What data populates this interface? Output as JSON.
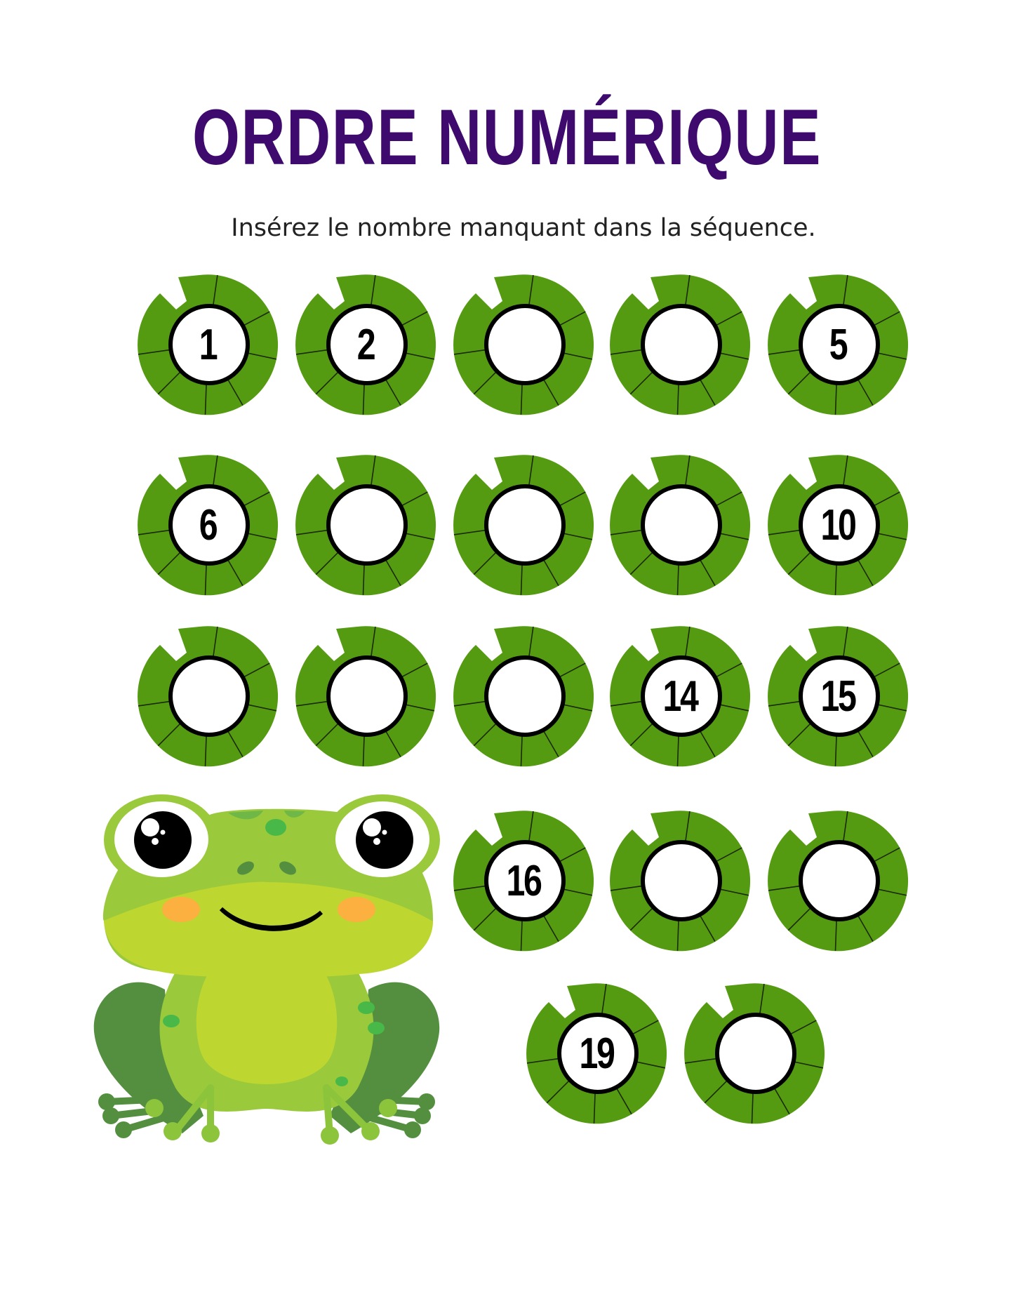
{
  "header": {
    "title": "ORDRE NUMÉRIQUE",
    "subtitle": "Insérez le nombre manquant dans la séquence."
  },
  "colors": {
    "title": "#3f0a6e",
    "lily_pad": "#559b12",
    "frog_light": "#9aca3c",
    "frog_belly": "#bed630",
    "frog_dark": "#548f40"
  },
  "rows": [
    {
      "pads": [
        {
          "number": "1"
        },
        {
          "number": "2"
        },
        {
          "number": ""
        },
        {
          "number": ""
        },
        {
          "number": "5"
        }
      ]
    },
    {
      "pads": [
        {
          "number": "6"
        },
        {
          "number": ""
        },
        {
          "number": ""
        },
        {
          "number": ""
        },
        {
          "number": "10"
        }
      ]
    },
    {
      "pads": [
        {
          "number": ""
        },
        {
          "number": ""
        },
        {
          "number": ""
        },
        {
          "number": "14"
        },
        {
          "number": "15"
        }
      ]
    },
    {
      "pads": [
        {
          "number": "16"
        },
        {
          "number": ""
        },
        {
          "number": ""
        }
      ]
    },
    {
      "pads": [
        {
          "number": "19"
        },
        {
          "number": ""
        }
      ]
    }
  ]
}
